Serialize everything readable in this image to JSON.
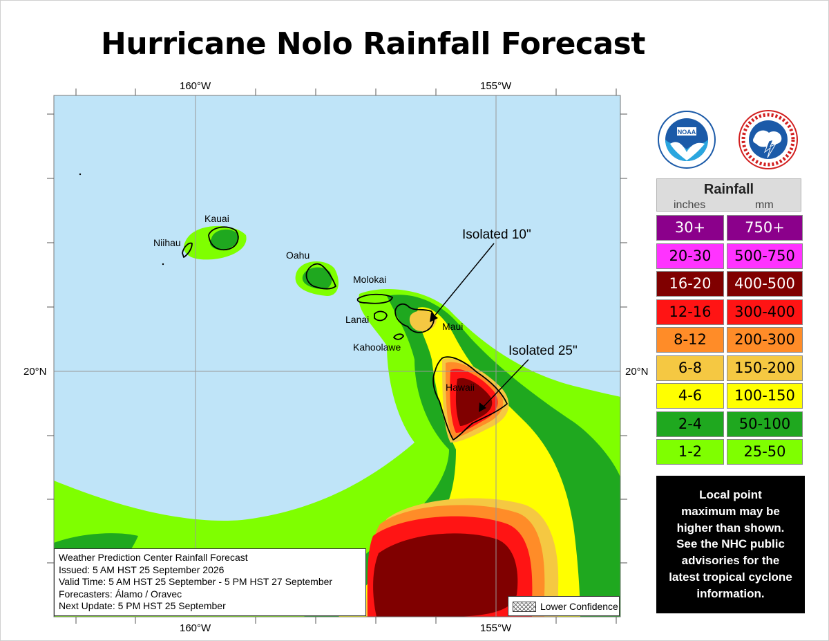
{
  "title": "Hurricane Nolo Rainfall Forecast",
  "map": {
    "lon_labels": [
      "160°W",
      "155°W"
    ],
    "lat_labels": [
      "20°N"
    ],
    "islands": [
      "Kauai",
      "Niihau",
      "Oahu",
      "Molokai",
      "Lanai",
      "Maui",
      "Kahoolawe",
      "Hawaii"
    ],
    "annotations": [
      "Isolated 10\"",
      "Isolated 25\""
    ],
    "colors": {
      "ocean": "#bfe4f8",
      "r1_2": "#7fff00",
      "r2_4": "#1fa81f",
      "r4_6": "#ffff00",
      "r6_8": "#f5c842",
      "r8_12": "#ff8c28",
      "r12_16": "#ff1414",
      "r16_20": "#800000"
    }
  },
  "info_box": {
    "line1": "Weather Prediction Center Rainfall Forecast",
    "line2": "Issued: 5 AM HST 25 September 2026",
    "line3": "Valid Time: 5 AM HST 25 September - 5 PM HST 27 September",
    "line4": "Forecasters: Álamo / Oravec",
    "line5": "Next Update: 5 PM HST 25 September"
  },
  "lower_confidence_label": "Lower Confidence",
  "logos": [
    "noaa-logo",
    "national-weather-service-logo"
  ],
  "legend": {
    "title": "Rainfall",
    "unit_inches": "inches",
    "unit_mm": "mm",
    "rows": [
      {
        "inches": "30+",
        "mm": "750+",
        "color": "#8b008b",
        "text_color": "#ffffff"
      },
      {
        "inches": "20-30",
        "mm": "500-750",
        "color": "#ff33ff",
        "text_color": "#000000"
      },
      {
        "inches": "16-20",
        "mm": "400-500",
        "color": "#800000",
        "text_color": "#ffffff"
      },
      {
        "inches": "12-16",
        "mm": "300-400",
        "color": "#ff1414",
        "text_color": "#000000"
      },
      {
        "inches": "8-12",
        "mm": "200-300",
        "color": "#ff8c28",
        "text_color": "#000000"
      },
      {
        "inches": "6-8",
        "mm": "150-200",
        "color": "#f5c842",
        "text_color": "#000000"
      },
      {
        "inches": "4-6",
        "mm": "100-150",
        "color": "#ffff00",
        "text_color": "#000000"
      },
      {
        "inches": "2-4",
        "mm": "50-100",
        "color": "#1fa81f",
        "text_color": "#000000"
      },
      {
        "inches": "1-2",
        "mm": "25-50",
        "color": "#7fff00",
        "text_color": "#000000"
      }
    ]
  },
  "note": {
    "line1": "Local point",
    "line2": "maximum may be",
    "line3": "higher than shown.",
    "line4": "See the NHC public",
    "line5": "advisories for the",
    "line6": "latest tropical cyclone",
    "line7": "information."
  }
}
